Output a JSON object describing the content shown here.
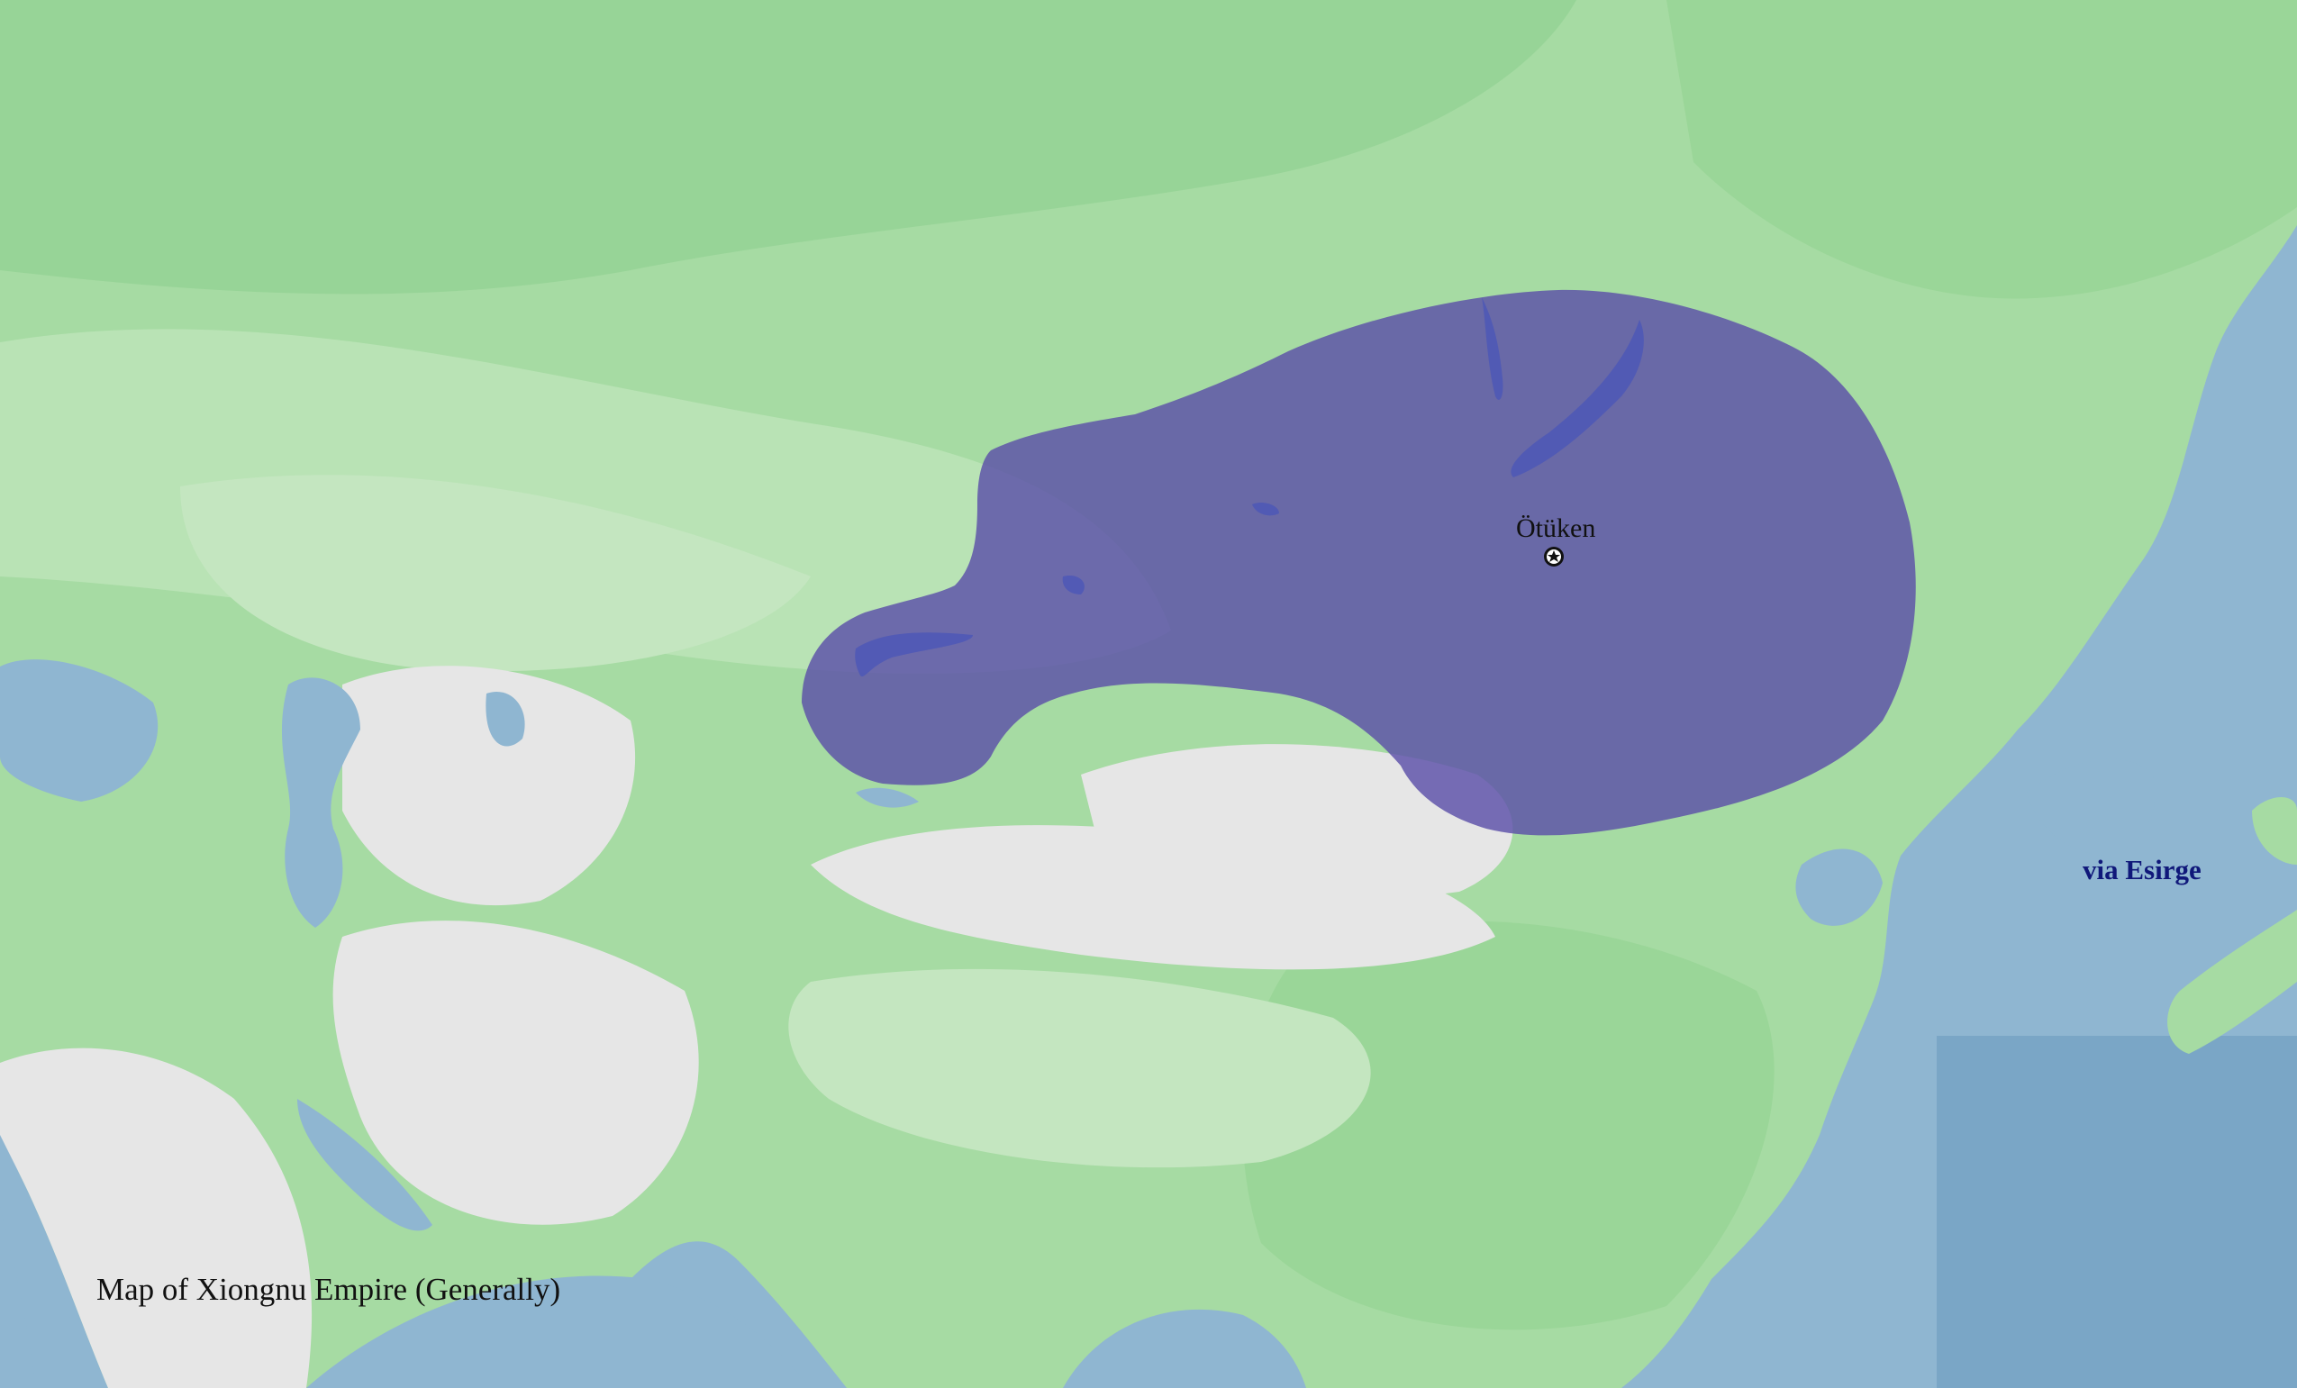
{
  "map": {
    "title": "Map of  Xiongnu Empire (Generally)",
    "credit": "via Esirge",
    "places": [
      {
        "name": "Ötüken",
        "type": "capital",
        "icon": "capital-star-icon"
      }
    ],
    "regions": [
      {
        "name": "Xiongnu Empire",
        "fill": "#5b4fa8"
      }
    ],
    "colors": {
      "sea": "#8fb6d1",
      "land": "#a6dba3",
      "desert": "#e6e6e6",
      "empire": "#5b4fa8",
      "credit_text": "#10187a"
    }
  }
}
